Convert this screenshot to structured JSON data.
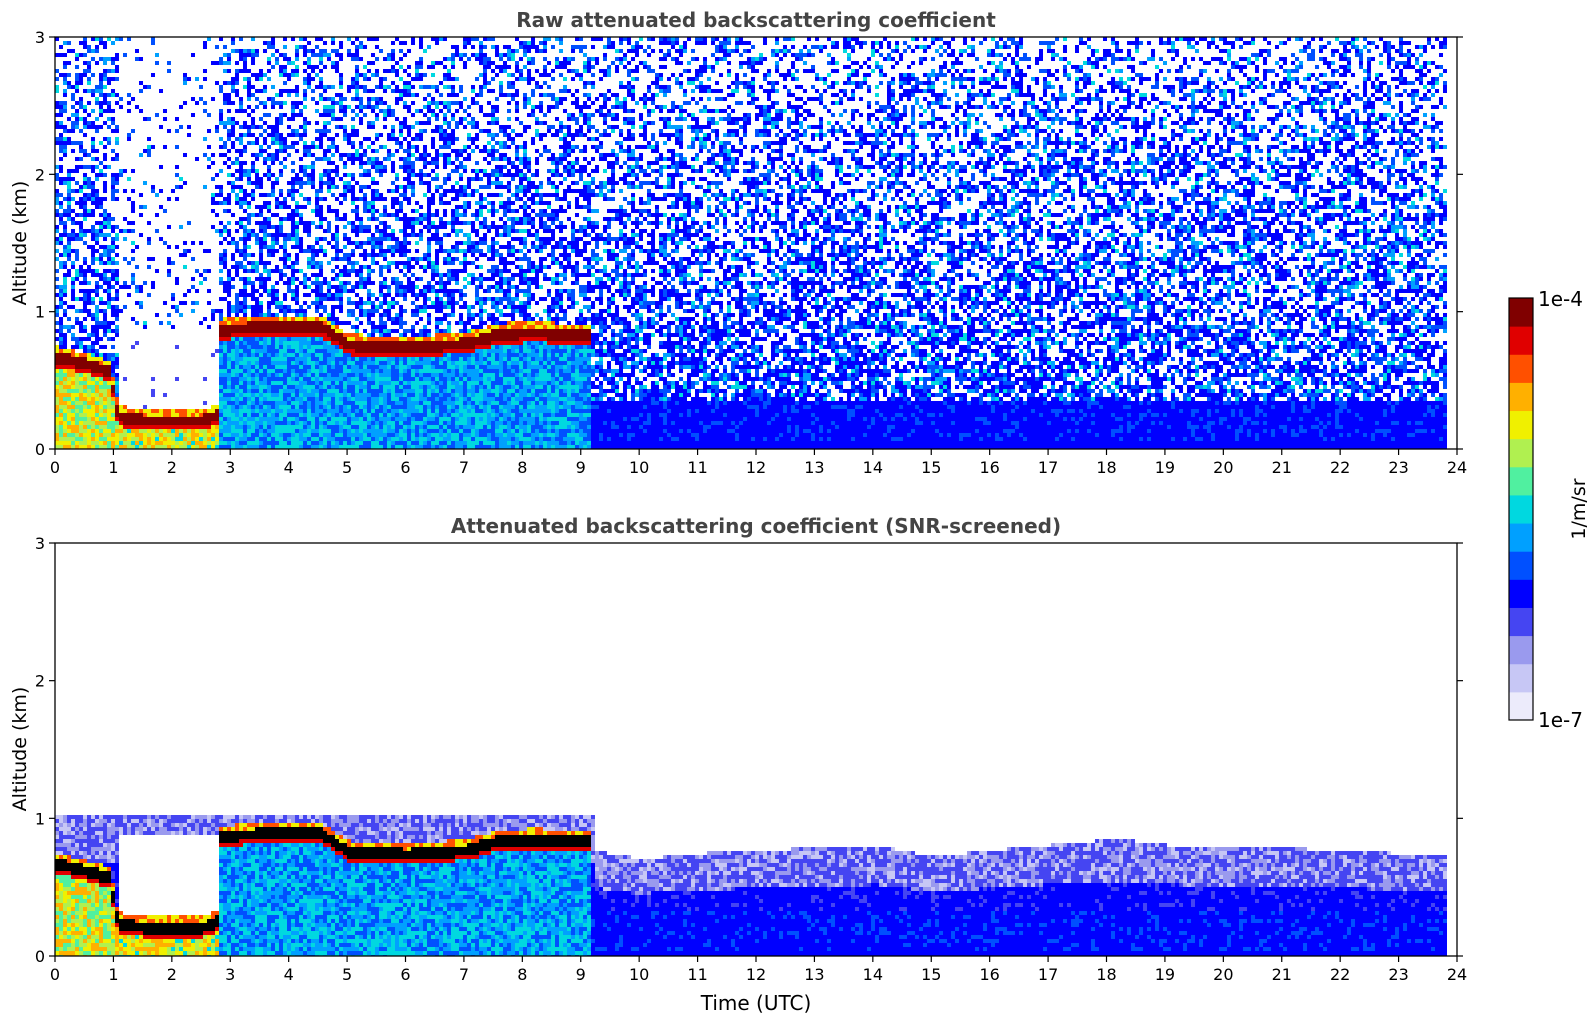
{
  "chart_data": [
    {
      "type": "heatmap",
      "title": "Raw attenuated backscattering coefficient",
      "xlabel": "",
      "ylabel": "Altitude (km)",
      "xlim": [
        0,
        24
      ],
      "ylim": [
        0,
        3
      ],
      "x_ticks": [
        "0",
        "1",
        "2",
        "3",
        "4",
        "5",
        "6",
        "7",
        "8",
        "9",
        "10",
        "11",
        "12",
        "13",
        "14",
        "15",
        "16",
        "17",
        "18",
        "19",
        "20",
        "21",
        "22",
        "23",
        "24"
      ],
      "y_ticks": [
        "0",
        "1",
        "2",
        "3"
      ],
      "grid": false,
      "cloud_base_km": {
        "time_h": [
          0.0,
          0.5,
          0.9,
          1.05,
          1.5,
          2.0,
          2.5,
          2.75,
          2.8,
          3.5,
          4.5,
          5.0,
          6.0,
          7.0,
          7.6,
          8.2,
          9.1
        ],
        "alt_km": [
          0.68,
          0.63,
          0.58,
          0.25,
          0.22,
          0.22,
          0.22,
          0.26,
          0.88,
          0.9,
          0.91,
          0.77,
          0.75,
          0.78,
          0.85,
          0.86,
          0.84
        ]
      },
      "noise_base_density": 0.55,
      "low_level_layer_top_km": 0.35
    },
    {
      "type": "heatmap",
      "title": "Attenuated backscattering coefficient (SNR-screened)",
      "xlabel": "Time (UTC)",
      "ylabel": "Altitude (km)",
      "xlim": [
        0,
        24
      ],
      "ylim": [
        0,
        3
      ],
      "x_ticks": [
        "0",
        "1",
        "2",
        "3",
        "4",
        "5",
        "6",
        "7",
        "8",
        "9",
        "10",
        "11",
        "12",
        "13",
        "14",
        "15",
        "16",
        "17",
        "18",
        "19",
        "20",
        "21",
        "22",
        "23",
        "24"
      ],
      "y_ticks": [
        "0",
        "1",
        "2",
        "3"
      ],
      "grid": false,
      "screened_layer_top_km": {
        "time_h": [
          9.2,
          10,
          11,
          12,
          13,
          14,
          15,
          16,
          17,
          18,
          18.3,
          19,
          20,
          21,
          22,
          23,
          23.8
        ],
        "alt_km": [
          0.78,
          0.72,
          0.76,
          0.78,
          0.8,
          0.82,
          0.74,
          0.78,
          0.82,
          0.86,
          0.86,
          0.82,
          0.8,
          0.8,
          0.78,
          0.76,
          0.76
        ]
      }
    }
  ],
  "colorbar": {
    "label": "1/m/sr",
    "min_label": "1e-7",
    "max_label": "1e-4",
    "scale": "log",
    "colors": [
      "#ecebfb",
      "#c7c7f5",
      "#9a9aee",
      "#4545f2",
      "#0000ff",
      "#0050ff",
      "#00a0ff",
      "#00d8e0",
      "#50f0a0",
      "#b0f050",
      "#f0f000",
      "#ffb000",
      "#ff5000",
      "#e00000",
      "#800000"
    ]
  }
}
